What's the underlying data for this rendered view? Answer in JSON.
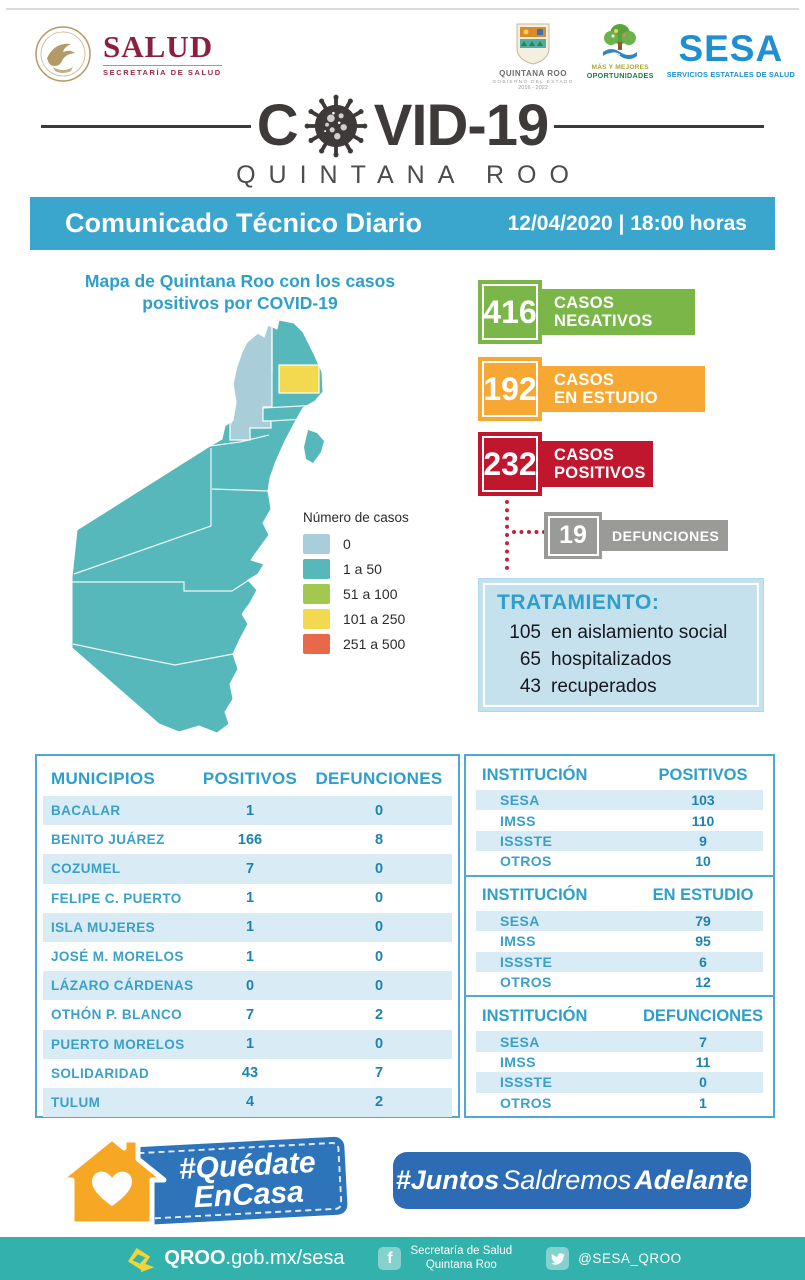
{
  "header": {
    "salud": {
      "title": "SALUD",
      "subtitle": "SECRETARÍA DE SALUD"
    },
    "qroo_gov": {
      "title": "QUINTANA ROO",
      "subtitle": "GOBIERNO DEL ESTADO",
      "years": "2016 - 2022"
    },
    "oportunidades": {
      "line1": "MÁS Y MEJORES",
      "line2": "OPORTUNIDADES"
    },
    "sesa": {
      "title": "SESA",
      "subtitle": "SERVICIOS ESTATALES DE SALUD"
    }
  },
  "logo": {
    "part1": "C",
    "part2": "VID-19",
    "subtitle": "QUINTANA ROO"
  },
  "banner": {
    "title": "Comunicado Técnico Diario",
    "datetime": "12/04/2020 | 18:00 horas",
    "color": "#3aa6ce"
  },
  "map": {
    "title_line1": "Mapa de Quintana Roo con los casos",
    "title_line2": "positivos por COVID-19",
    "legend_title": "Número de casos",
    "legend": [
      {
        "label": "0",
        "color": "#a9cdd9"
      },
      {
        "label": "1 a 50",
        "color": "#56b8ba"
      },
      {
        "label": "51 a 100",
        "color": "#a2c84f"
      },
      {
        "label": "101 a 250",
        "color": "#f2d94f"
      },
      {
        "label": "251 a 500",
        "color": "#e8694a"
      }
    ]
  },
  "stats": [
    {
      "value": "416",
      "label_line1": "CASOS",
      "label_line2": "NEGATIVOS",
      "color": "#7ab648"
    },
    {
      "value": "192",
      "label_line1": "CASOS",
      "label_line2": "EN ESTUDIO",
      "color": "#f7a832"
    },
    {
      "value": "232",
      "label_line1": "CASOS",
      "label_line2": "POSITIVOS",
      "color": "#c0172f"
    }
  ],
  "deaths": {
    "value": "19",
    "label": "DEFUNCIONES",
    "color": "#9a9a99"
  },
  "treatment": {
    "title": "TRATAMIENTO:",
    "items": [
      {
        "value": "105",
        "label": "en aislamiento social"
      },
      {
        "value": "65",
        "label": "hospitalizados"
      },
      {
        "value": "43",
        "label": "recuperados"
      }
    ]
  },
  "municipios_table": {
    "headers": [
      "MUNICIPIOS",
      "POSITIVOS",
      "DEFUNCIONES"
    ],
    "rows": [
      [
        "BACALAR",
        "1",
        "0"
      ],
      [
        "BENITO JUÁREZ",
        "166",
        "8"
      ],
      [
        "COZUMEL",
        "7",
        "0"
      ],
      [
        "FELIPE C. PUERTO",
        "1",
        "0"
      ],
      [
        "ISLA MUJERES",
        "1",
        "0"
      ],
      [
        "JOSÉ M. MORELOS",
        "1",
        "0"
      ],
      [
        "LÁZARO CÁRDENAS",
        "0",
        "0"
      ],
      [
        "OTHÓN P. BLANCO",
        "7",
        "2"
      ],
      [
        "PUERTO MORELOS",
        "1",
        "0"
      ],
      [
        "SOLIDARIDAD",
        "43",
        "7"
      ],
      [
        "TULUM",
        "4",
        "2"
      ]
    ]
  },
  "institution_tables": [
    {
      "headers": [
        "INSTITUCIÓN",
        "POSITIVOS"
      ],
      "rows": [
        [
          "SESA",
          "103"
        ],
        [
          "IMSS",
          "110"
        ],
        [
          "ISSSTE",
          "9"
        ],
        [
          "OTROS",
          "10"
        ]
      ]
    },
    {
      "headers": [
        "INSTITUCIÓN",
        "EN ESTUDIO"
      ],
      "rows": [
        [
          "SESA",
          "79"
        ],
        [
          "IMSS",
          "95"
        ],
        [
          "ISSSTE",
          "6"
        ],
        [
          "OTROS",
          "12"
        ]
      ]
    },
    {
      "headers": [
        "INSTITUCIÓN",
        "DEFUNCIONES"
      ],
      "rows": [
        [
          "SESA",
          "7"
        ],
        [
          "IMSS",
          "11"
        ],
        [
          "ISSSTE",
          "0"
        ],
        [
          "OTROS",
          "1"
        ]
      ]
    }
  ],
  "campaigns": {
    "quedate": {
      "line1": "#Quédate",
      "line2": "EnCasa"
    },
    "juntos": {
      "part1": "#Juntos",
      "part2": "Saldremos",
      "part3": "Adelante"
    }
  },
  "footer": {
    "website_bold": "QROO",
    "website_rest": ".gob.mx/sesa",
    "facebook_line1": "Secretaría de Salud",
    "facebook_line2": "Quintana Roo",
    "twitter": "@SESA_QROO",
    "bar_color": "#33b2ad"
  }
}
